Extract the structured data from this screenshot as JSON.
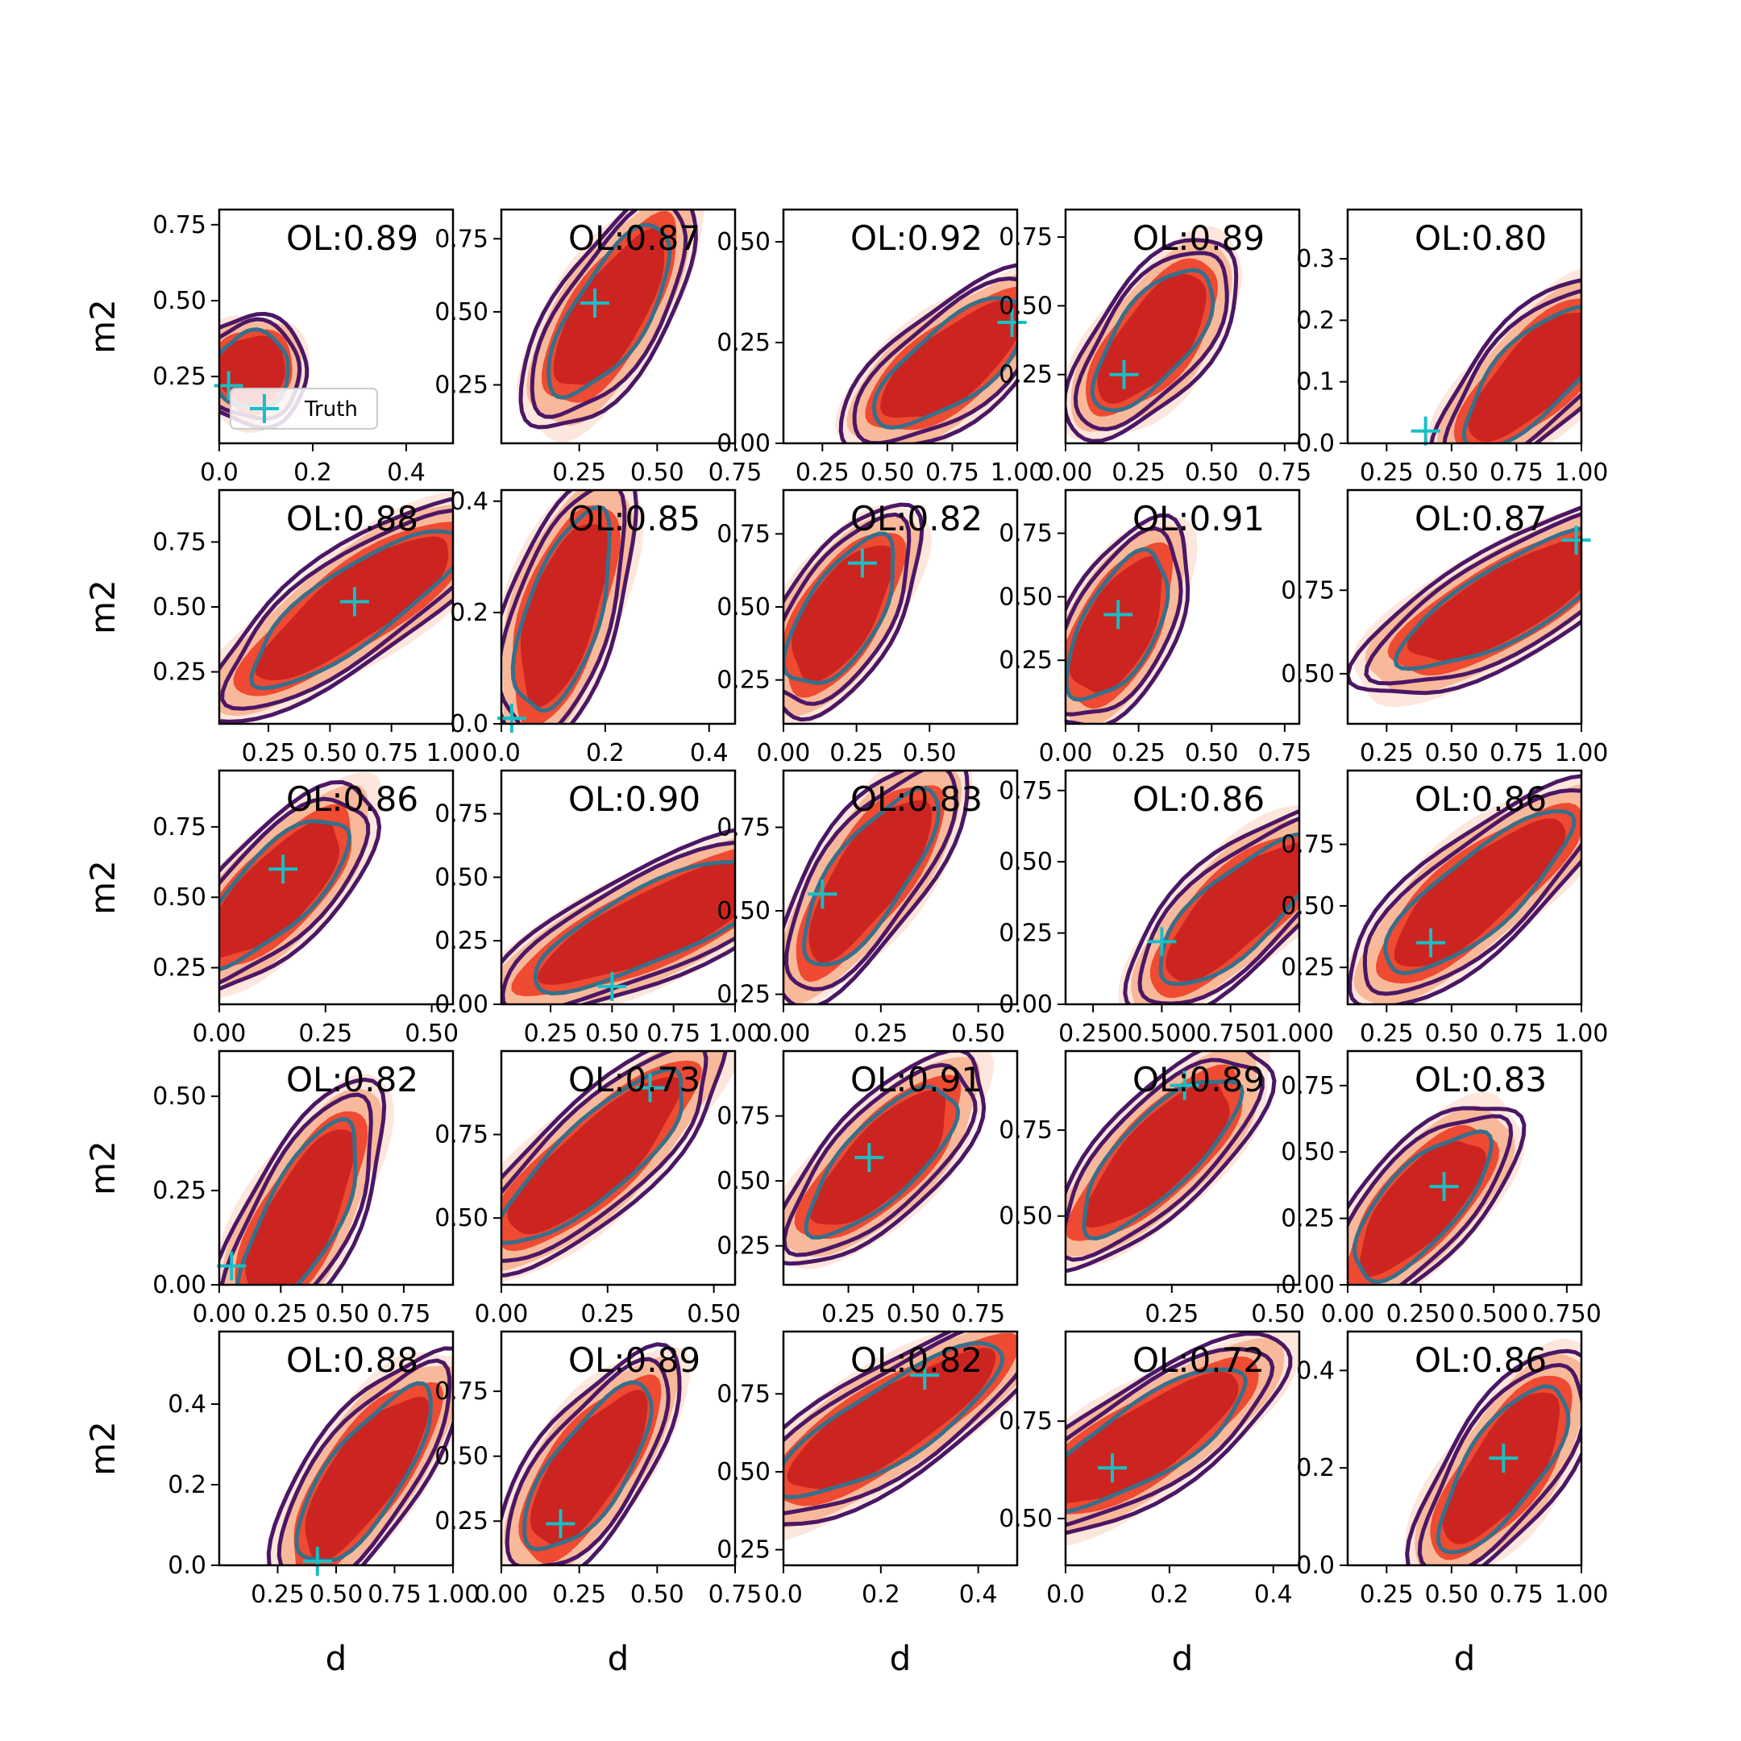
{
  "chart_data": {
    "type": "contour-grid",
    "xlabel": "d",
    "ylabel": "m2",
    "legend": {
      "label": "Truth",
      "location": "lower-right of first panel"
    },
    "colors": {
      "filled": [
        "#fde6dc",
        "#f8b99a",
        "#ef4a32",
        "#cc2420"
      ],
      "contour_outer": "#4b1765",
      "contour_inner": "#36708b",
      "truth": "#17bfc6"
    },
    "panels": [
      {
        "ol": "OL:0.89",
        "xlim": [
          0,
          0.5
        ],
        "ylim": [
          0.03,
          0.8
        ],
        "xticks": [
          0,
          0.2,
          0.4
        ],
        "xtick_labels": [
          "0.0",
          "0.2",
          "0.4"
        ],
        "yticks": [
          0.25,
          0.5,
          0.75
        ],
        "ytick_labels": [
          "0.25",
          "0.50",
          "0.75"
        ],
        "truth": [
          0.02,
          0.22
        ],
        "center": [
          0.07,
          0.27
        ],
        "angle": 62,
        "rx": 0.23,
        "ry": 0.55,
        "scale": 0.22
      },
      {
        "ol": "OL:0.87",
        "xlim": [
          0,
          0.75
        ],
        "ylim": [
          0.05,
          0.85
        ],
        "xticks": [
          0.25,
          0.5,
          0.75
        ],
        "xtick_labels": [
          "0.25",
          "0.50",
          "0.75"
        ],
        "yticks": [
          0.25,
          0.5,
          0.75
        ],
        "ytick_labels": [
          "0.25",
          "0.50",
          "0.75"
        ],
        "truth": [
          0.3,
          0.53
        ],
        "center": [
          0.35,
          0.5
        ],
        "angle": 58,
        "rx": 0.58,
        "ry": 0.55,
        "scale": 0.22
      },
      {
        "ol": "OL:0.92",
        "xlim": [
          0.1,
          1.0
        ],
        "ylim": [
          0,
          0.58
        ],
        "xticks": [
          0.25,
          0.5,
          0.75,
          1.0
        ],
        "xtick_labels": [
          "0.25",
          "0.50",
          "0.75",
          "1.00"
        ],
        "yticks": [
          0,
          0.25,
          0.5
        ],
        "ytick_labels": [
          "0.00",
          "0.25",
          "0.50"
        ],
        "truth": [
          0.98,
          0.3
        ],
        "center": [
          0.75,
          0.2
        ],
        "angle": 38,
        "rx": 0.55,
        "ry": 0.7,
        "scale": 0.22
      },
      {
        "ol": "OL:0.89",
        "xlim": [
          0,
          0.8
        ],
        "ylim": [
          0,
          0.85
        ],
        "xticks": [
          0,
          0.25,
          0.5,
          0.75
        ],
        "xtick_labels": [
          "0.00",
          "0.25",
          "0.50",
          "0.75"
        ],
        "yticks": [
          0.25,
          0.5,
          0.75
        ],
        "ytick_labels": [
          "0.25",
          "0.50",
          "0.75"
        ],
        "truth": [
          0.2,
          0.25
        ],
        "center": [
          0.3,
          0.38
        ],
        "angle": 52,
        "rx": 0.5,
        "ry": 0.55,
        "scale": 0.22
      },
      {
        "ol": "OL:0.80",
        "xlim": [
          0.1,
          1.0
        ],
        "ylim": [
          0,
          0.38
        ],
        "xticks": [
          0.25,
          0.5,
          0.75,
          1.0
        ],
        "xtick_labels": [
          "0.25",
          "0.50",
          "0.75",
          "1.00"
        ],
        "yticks": [
          0,
          0.1,
          0.2,
          0.3
        ],
        "ytick_labels": [
          "0.0",
          "0.1",
          "0.2",
          "0.3"
        ],
        "truth": [
          0.4,
          0.02
        ],
        "center": [
          0.82,
          0.11
        ],
        "angle": 45,
        "rx": 0.55,
        "ry": 0.65,
        "scale": 0.22
      },
      {
        "ol": "OL:0.88",
        "xlim": [
          0.05,
          1.0
        ],
        "ylim": [
          0.05,
          0.95
        ],
        "xticks": [
          0.25,
          0.5,
          0.75,
          1.0
        ],
        "xtick_labels": [
          "0.25",
          "0.50",
          "0.75",
          "1.00"
        ],
        "yticks": [
          0.25,
          0.5,
          0.75
        ],
        "ytick_labels": [
          "0.25",
          "0.50",
          "0.75"
        ],
        "truth": [
          0.6,
          0.52
        ],
        "center": [
          0.6,
          0.5
        ],
        "angle": 35,
        "rx": 0.75,
        "ry": 0.48,
        "scale": 0.22
      },
      {
        "ol": "OL:0.85",
        "xlim": [
          0,
          0.45
        ],
        "ylim": [
          0,
          0.42
        ],
        "xticks": [
          0,
          0.2,
          0.4
        ],
        "xtick_labels": [
          "0.0",
          "0.2",
          "0.4"
        ],
        "yticks": [
          0,
          0.2,
          0.4
        ],
        "ytick_labels": [
          "0.0",
          "0.2",
          "0.4"
        ],
        "truth": [
          0.02,
          0.01
        ],
        "center": [
          0.12,
          0.2
        ],
        "angle": 72,
        "rx": 0.62,
        "ry": 0.45,
        "scale": 0.22
      },
      {
        "ol": "OL:0.82",
        "xlim": [
          0,
          0.8
        ],
        "ylim": [
          0.1,
          0.9
        ],
        "xticks": [
          0,
          0.25,
          0.5
        ],
        "xtick_labels": [
          "0.00",
          "0.25",
          "0.50"
        ],
        "yticks": [
          0.25,
          0.5,
          0.75
        ],
        "ytick_labels": [
          "0.25",
          "0.50",
          "0.75"
        ],
        "truth": [
          0.27,
          0.65
        ],
        "center": [
          0.2,
          0.48
        ],
        "angle": 58,
        "rx": 0.5,
        "ry": 0.42,
        "scale": 0.22
      },
      {
        "ol": "OL:0.91",
        "xlim": [
          0,
          0.8
        ],
        "ylim": [
          0,
          0.92
        ],
        "xticks": [
          0,
          0.25,
          0.5,
          0.75
        ],
        "xtick_labels": [
          "0.00",
          "0.25",
          "0.50",
          "0.75"
        ],
        "yticks": [
          0.25,
          0.5,
          0.75
        ],
        "ytick_labels": [
          "0.25",
          "0.50",
          "0.75"
        ],
        "truth": [
          0.18,
          0.43
        ],
        "center": [
          0.18,
          0.38
        ],
        "angle": 62,
        "rx": 0.48,
        "ry": 0.38,
        "scale": 0.22
      },
      {
        "ol": "OL:0.87",
        "xlim": [
          0.1,
          1.0
        ],
        "ylim": [
          0.35,
          1.05
        ],
        "xticks": [
          0.25,
          0.5,
          0.75,
          1.0
        ],
        "xtick_labels": [
          "0.25",
          "0.50",
          "0.75",
          "1.00"
        ],
        "yticks": [
          0.5,
          0.75
        ],
        "ytick_labels": [
          "0.50",
          "0.75"
        ],
        "truth": [
          0.98,
          0.9
        ],
        "center": [
          0.72,
          0.72
        ],
        "angle": 30,
        "rx": 0.72,
        "ry": 0.5,
        "scale": 0.22
      },
      {
        "ol": "OL:0.86",
        "xlim": [
          0,
          0.55
        ],
        "ylim": [
          0.12,
          0.95
        ],
        "xticks": [
          0,
          0.25,
          0.5
        ],
        "xtick_labels": [
          "0.00",
          "0.25",
          "0.50"
        ],
        "yticks": [
          0.25,
          0.5,
          0.75
        ],
        "ytick_labels": [
          "0.25",
          "0.50",
          "0.75"
        ],
        "truth": [
          0.15,
          0.6
        ],
        "center": [
          0.13,
          0.52
        ],
        "angle": 45,
        "rx": 0.58,
        "ry": 0.4,
        "scale": 0.22
      },
      {
        "ol": "OL:0.90",
        "xlim": [
          0.05,
          1.0
        ],
        "ylim": [
          0,
          0.92
        ],
        "xticks": [
          0.25,
          0.5,
          0.75,
          1.0
        ],
        "xtick_labels": [
          "0.25",
          "0.50",
          "0.75",
          "1.00"
        ],
        "yticks": [
          0,
          0.25,
          0.5,
          0.75
        ],
        "ytick_labels": [
          "0.00",
          "0.25",
          "0.50",
          "0.75"
        ],
        "truth": [
          0.5,
          0.07
        ],
        "center": [
          0.68,
          0.32
        ],
        "angle": 25,
        "rx": 0.8,
        "ry": 0.55,
        "scale": 0.22
      },
      {
        "ol": "OL:0.83",
        "xlim": [
          0,
          0.6
        ],
        "ylim": [
          0.22,
          0.92
        ],
        "xticks": [
          0,
          0.25,
          0.5
        ],
        "xtick_labels": [
          "0.00",
          "0.25",
          "0.50"
        ],
        "yticks": [
          0.25,
          0.5,
          0.75
        ],
        "ytick_labels": [
          "0.25",
          "0.50",
          "0.75"
        ],
        "truth": [
          0.1,
          0.55
        ],
        "center": [
          0.22,
          0.6
        ],
        "angle": 55,
        "rx": 0.62,
        "ry": 0.45,
        "scale": 0.22
      },
      {
        "ol": "OL:0.86",
        "xlim": [
          0.15,
          1.0
        ],
        "ylim": [
          0,
          0.82
        ],
        "xticks": [
          0.25,
          0.5,
          0.75,
          1.0
        ],
        "xtick_labels": [
          "0.250",
          "0.500",
          "0.750",
          "1.000"
        ],
        "yticks": [
          0,
          0.25,
          0.5,
          0.75
        ],
        "ytick_labels": [
          "0.00",
          "0.25",
          "0.50",
          "0.75"
        ],
        "truth": [
          0.5,
          0.22
        ],
        "center": [
          0.78,
          0.33
        ],
        "angle": 42,
        "rx": 0.62,
        "ry": 0.6,
        "scale": 0.22
      },
      {
        "ol": "OL:0.86",
        "xlim": [
          0.1,
          1.0
        ],
        "ylim": [
          0.1,
          1.05
        ],
        "xticks": [
          0.25,
          0.5,
          0.75,
          1.0
        ],
        "xtick_labels": [
          "0.25",
          "0.50",
          "0.75",
          "1.00"
        ],
        "yticks": [
          0.25,
          0.5,
          0.75
        ],
        "ytick_labels": [
          "0.25",
          "0.50",
          "0.75"
        ],
        "truth": [
          0.42,
          0.35
        ],
        "center": [
          0.6,
          0.55
        ],
        "angle": 40,
        "rx": 0.7,
        "ry": 0.5,
        "scale": 0.22
      },
      {
        "ol": "OL:0.82",
        "xlim": [
          0,
          0.95
        ],
        "ylim": [
          0,
          0.62
        ],
        "xticks": [
          0,
          0.25,
          0.5,
          0.75
        ],
        "xtick_labels": [
          "0.00",
          "0.25",
          "0.50",
          "0.75"
        ],
        "yticks": [
          0,
          0.25,
          0.5
        ],
        "ytick_labels": [
          "0.00",
          "0.25",
          "0.50"
        ],
        "truth": [
          0.05,
          0.05
        ],
        "center": [
          0.33,
          0.18
        ],
        "angle": 62,
        "rx": 0.62,
        "ry": 0.5,
        "scale": 0.22
      },
      {
        "ol": "OL:0.73",
        "xlim": [
          0,
          0.55
        ],
        "ylim": [
          0.3,
          1.0
        ],
        "xticks": [
          0,
          0.25,
          0.5
        ],
        "xtick_labels": [
          "0.00",
          "0.25",
          "0.50"
        ],
        "yticks": [
          0.5,
          0.75
        ],
        "ytick_labels": [
          "0.50",
          "0.75"
        ],
        "truth": [
          0.35,
          0.89
        ],
        "center": [
          0.22,
          0.68
        ],
        "angle": 42,
        "rx": 0.72,
        "ry": 0.45,
        "scale": 0.22
      },
      {
        "ol": "OL:0.91",
        "xlim": [
          0,
          0.9
        ],
        "ylim": [
          0.1,
          1.0
        ],
        "xticks": [
          0.25,
          0.5,
          0.75
        ],
        "xtick_labels": [
          "0.25",
          "0.50",
          "0.75"
        ],
        "yticks": [
          0.25,
          0.5,
          0.75
        ],
        "ytick_labels": [
          "0.25",
          "0.50",
          "0.75"
        ],
        "truth": [
          0.33,
          0.59
        ],
        "center": [
          0.38,
          0.58
        ],
        "angle": 45,
        "rx": 0.58,
        "ry": 0.42,
        "scale": 0.22
      },
      {
        "ol": "OL:0.89",
        "xlim": [
          0,
          0.55
        ],
        "ylim": [
          0.3,
          0.98
        ],
        "xticks": [
          0.25,
          0.5
        ],
        "xtick_labels": [
          "0.25",
          "0.50"
        ],
        "yticks": [
          0.5,
          0.75
        ],
        "ytick_labels": [
          "0.50",
          "0.75"
        ],
        "truth": [
          0.28,
          0.88
        ],
        "center": [
          0.22,
          0.68
        ],
        "angle": 45,
        "rx": 0.62,
        "ry": 0.45,
        "scale": 0.22
      },
      {
        "ol": "OL:0.83",
        "xlim": [
          0,
          0.8
        ],
        "ylim": [
          0,
          0.88
        ],
        "xticks": [
          0,
          0.25,
          0.5,
          0.75
        ],
        "xtick_labels": [
          "0.00",
          "0.250",
          "0.500",
          "0.750"
        ],
        "yticks": [
          0,
          0.25,
          0.5,
          0.75
        ],
        "ytick_labels": [
          "0.00",
          "0.25",
          "0.50",
          "0.75"
        ],
        "truth": [
          0.33,
          0.37
        ],
        "center": [
          0.25,
          0.3
        ],
        "angle": 48,
        "rx": 0.55,
        "ry": 0.42,
        "scale": 0.22
      },
      {
        "ol": "OL:0.88",
        "xlim": [
          0,
          1.0
        ],
        "ylim": [
          0,
          0.58
        ],
        "xticks": [
          0.25,
          0.5,
          0.75,
          1.0
        ],
        "xtick_labels": [
          "0.25",
          "0.50",
          "0.75",
          "1.00"
        ],
        "yticks": [
          0,
          0.2,
          0.4
        ],
        "ytick_labels": [
          "0.0",
          "0.2",
          "0.4"
        ],
        "truth": [
          0.42,
          0.01
        ],
        "center": [
          0.62,
          0.22
        ],
        "angle": 55,
        "rx": 0.62,
        "ry": 0.58,
        "scale": 0.22
      },
      {
        "ol": "OL:0.89",
        "xlim": [
          0,
          0.75
        ],
        "ylim": [
          0.08,
          0.98
        ],
        "xticks": [
          0,
          0.25,
          0.5,
          0.75
        ],
        "xtick_labels": [
          "0.00",
          "0.25",
          "0.50",
          "0.75"
        ],
        "yticks": [
          0.25,
          0.5,
          0.75
        ],
        "ytick_labels": [
          "0.25",
          "0.50",
          "0.75"
        ],
        "truth": [
          0.19,
          0.24
        ],
        "center": [
          0.28,
          0.45
        ],
        "angle": 55,
        "rx": 0.58,
        "ry": 0.4,
        "scale": 0.22
      },
      {
        "ol": "OL:0.82",
        "xlim": [
          0,
          0.48
        ],
        "ylim": [
          0.2,
          0.95
        ],
        "xticks": [
          0,
          0.2,
          0.4
        ],
        "xtick_labels": [
          "0.0",
          "0.2",
          "0.4"
        ],
        "yticks": [
          0.25,
          0.5,
          0.75
        ],
        "ytick_labels": [
          "0.25",
          "0.50",
          "0.75"
        ],
        "truth": [
          0.29,
          0.81
        ],
        "center": [
          0.22,
          0.66
        ],
        "angle": 32,
        "rx": 0.78,
        "ry": 0.42,
        "scale": 0.22
      },
      {
        "ol": "OL:0.72",
        "xlim": [
          0,
          0.45
        ],
        "ylim": [
          0.38,
          0.98
        ],
        "xticks": [
          0,
          0.2,
          0.4
        ],
        "xtick_labels": [
          "0.0",
          "0.2",
          "0.4"
        ],
        "yticks": [
          0.5,
          0.75
        ],
        "ytick_labels": [
          "0.50",
          "0.75"
        ],
        "truth": [
          0.09,
          0.63
        ],
        "center": [
          0.15,
          0.7
        ],
        "angle": 32,
        "rx": 0.72,
        "ry": 0.42,
        "scale": 0.22
      },
      {
        "ol": "OL:0.86",
        "xlim": [
          0.1,
          1.0
        ],
        "ylim": [
          0,
          0.48
        ],
        "xticks": [
          0.25,
          0.5,
          0.75,
          1.0
        ],
        "xtick_labels": [
          "0.25",
          "0.50",
          "0.75",
          "1.00"
        ],
        "yticks": [
          0,
          0.2,
          0.4
        ],
        "ytick_labels": [
          "0.0",
          "0.2",
          "0.4"
        ],
        "truth": [
          0.7,
          0.22
        ],
        "center": [
          0.7,
          0.2
        ],
        "angle": 55,
        "rx": 0.58,
        "ry": 0.62,
        "scale": 0.22
      }
    ]
  }
}
